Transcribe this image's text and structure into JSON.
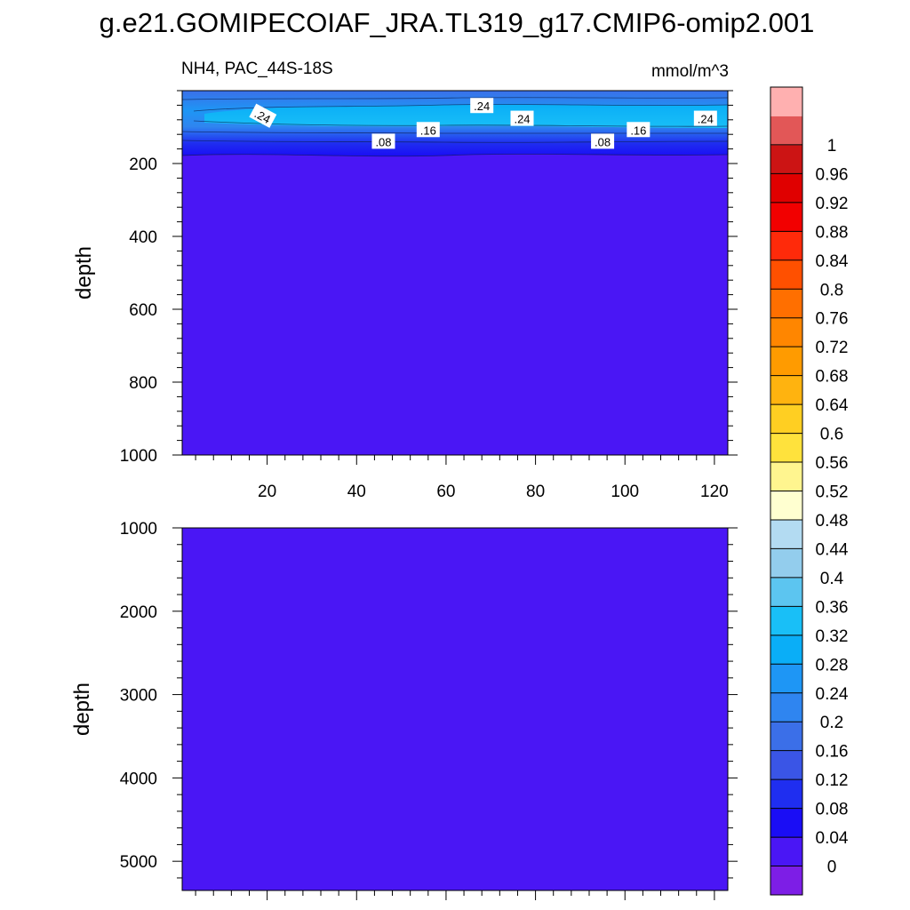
{
  "chart_data": {
    "type": "contour",
    "title": "g.e21.GOMIPECOIAF_JRA.TL319_g17.CMIP6-omip2.001",
    "variable_label": "NH4, PAC_44S-18S",
    "units_label": "mmol/m^3",
    "x_axis": {
      "range": [
        1,
        123
      ],
      "tick_values": [
        20,
        40,
        60,
        80,
        100,
        120
      ],
      "tick_labels": [
        "20",
        "40",
        "60",
        "80",
        "100",
        "120"
      ]
    },
    "panels": [
      {
        "name": "upper",
        "ylabel": "depth",
        "ylim": [
          0,
          1000
        ],
        "y_ticks": [
          200,
          400,
          600,
          800,
          1000
        ],
        "y_tick_labels": [
          "200",
          "400",
          "600",
          "800",
          "1000"
        ],
        "contour_labels": [
          {
            "text": ".24",
            "x": 19,
            "y": 70,
            "angle": 28
          },
          {
            "text": ".24",
            "x": 68,
            "y": 42,
            "angle": 0
          },
          {
            "text": ".24",
            "x": 77,
            "y": 77,
            "angle": 0
          },
          {
            "text": ".24",
            "x": 118,
            "y": 77,
            "angle": 0
          },
          {
            "text": ".16",
            "x": 56,
            "y": 108,
            "angle": 0
          },
          {
            "text": ".16",
            "x": 103,
            "y": 108,
            "angle": 0
          },
          {
            "text": ".08",
            "x": 46,
            "y": 140,
            "angle": 0
          },
          {
            "text": ".08",
            "x": 95,
            "y": 140,
            "angle": 0
          }
        ]
      },
      {
        "name": "lower",
        "ylabel": "depth",
        "ylim": [
          1000,
          5350
        ],
        "y_ticks": [
          1000,
          2000,
          3000,
          4000,
          5000
        ],
        "y_tick_labels": [
          "1000",
          "2000",
          "3000",
          "4000",
          "5000"
        ],
        "contour_labels": []
      }
    ],
    "colorbar": {
      "levels": [
        0,
        0.04,
        0.08,
        0.12,
        0.16,
        0.2,
        0.24,
        0.28,
        0.32,
        0.36,
        0.4,
        0.44,
        0.48,
        0.52,
        0.56,
        0.6,
        0.64,
        0.68,
        0.72,
        0.76,
        0.8,
        0.84,
        0.88,
        0.92,
        0.96,
        1
      ],
      "level_labels": [
        "0",
        "0.04",
        "0.08",
        "0.12",
        "0.16",
        "0.2",
        "0.24",
        "0.28",
        "0.32",
        "0.36",
        "0.4",
        "0.44",
        "0.48",
        "0.52",
        "0.56",
        "0.6",
        "0.64",
        "0.68",
        "0.72",
        "0.76",
        "0.8",
        "0.84",
        "0.88",
        "0.92",
        "0.96",
        "1"
      ],
      "colors": [
        "#7d1ee6",
        "#4a16f5",
        "#1a0df5",
        "#1f2ef0",
        "#3a55e6",
        "#3b6fe8",
        "#2f85f0",
        "#1e96f5",
        "#0aaef7",
        "#19bff7",
        "#5cc5f0",
        "#93cded",
        "#b3dbf2",
        "#ffffd0",
        "#fff58f",
        "#ffe23c",
        "#ffcf22",
        "#ffb30f",
        "#ff9b00",
        "#ff8600",
        "#ff6f00",
        "#ff5000",
        "#ff2a0a",
        "#f20000",
        "#e00000",
        "#cc1414",
        "#e25757",
        "#ffb0b0"
      ]
    }
  }
}
